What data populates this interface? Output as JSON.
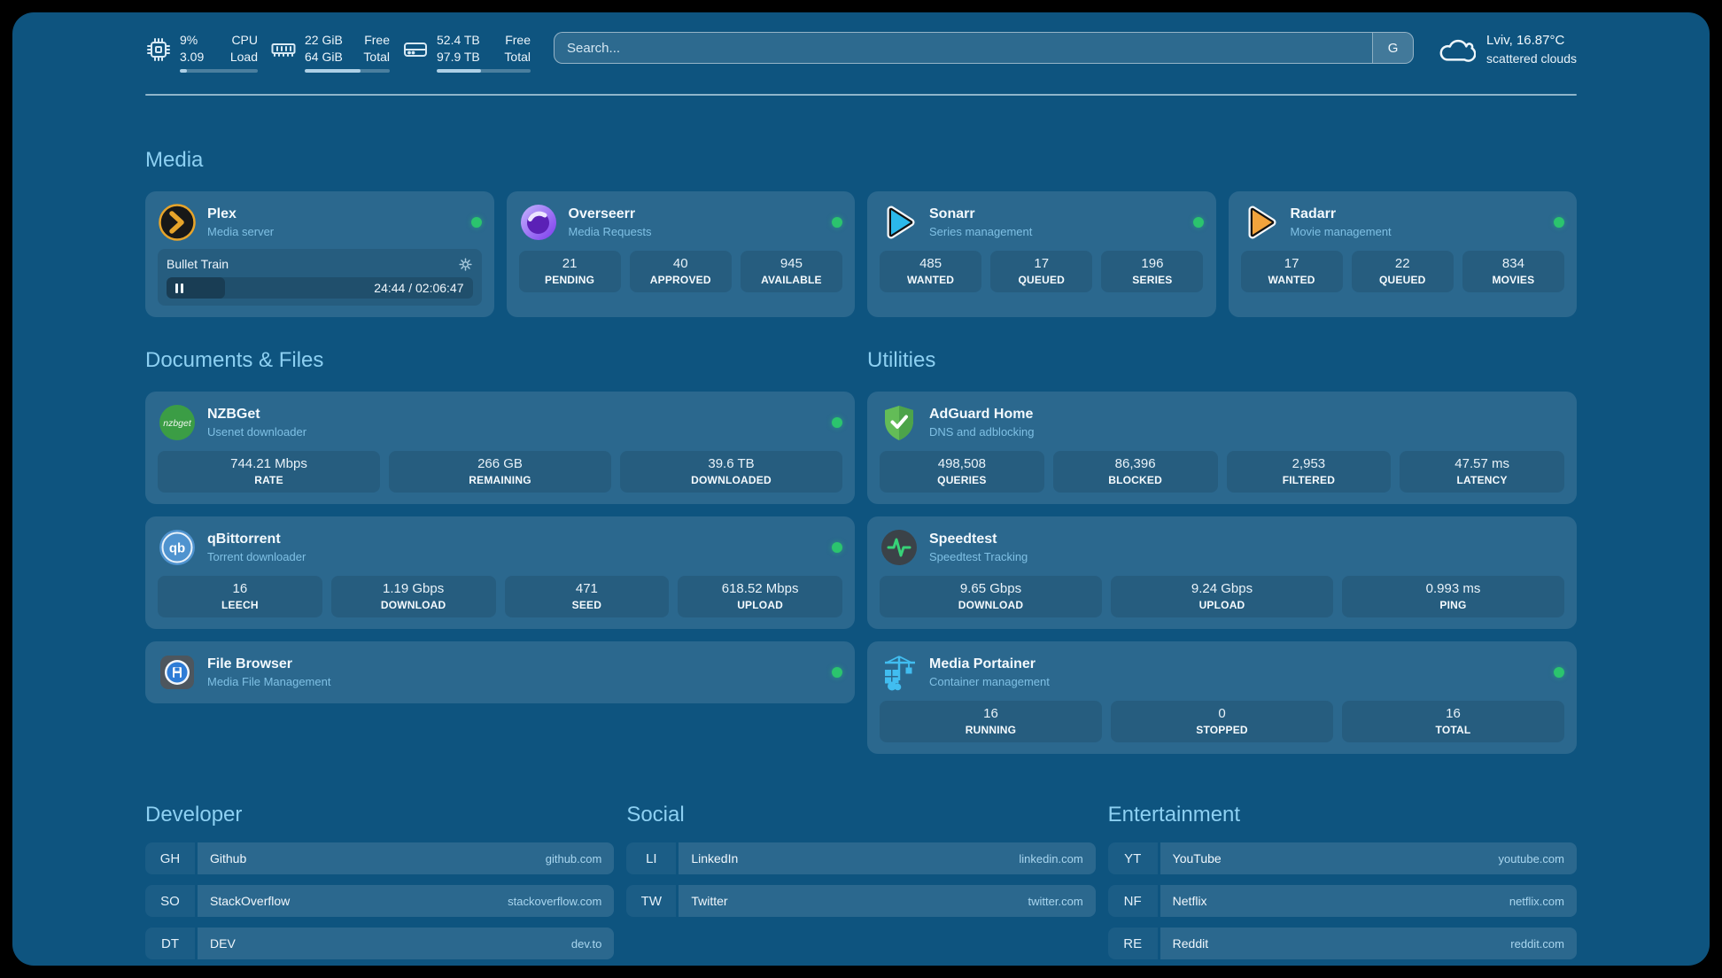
{
  "colors": {
    "panel_background": "#0e547f",
    "accent_heading": "#8dd0f2",
    "status_online": "#2bc46e"
  },
  "topbar": {
    "stats": [
      {
        "icon": "cpu-icon",
        "value1": "9%",
        "label1": "CPU",
        "value2": "3.09",
        "label2": "Load",
        "progress": 9
      },
      {
        "icon": "memory-icon",
        "value1": "22 GiB",
        "label1": "Free",
        "value2": "64 GiB",
        "label2": "Total",
        "progress": 66
      },
      {
        "icon": "disk-icon",
        "value1": "52.4 TB",
        "label1": "Free",
        "value2": "97.9 TB",
        "label2": "Total",
        "progress": 47
      }
    ],
    "search": {
      "placeholder": "Search...",
      "button_label": "G"
    },
    "weather": {
      "location_temp": "Lviv, 16.87°C",
      "condition": "scattered clouds"
    }
  },
  "media": {
    "header": "Media",
    "plex": {
      "title": "Plex",
      "subtitle": "Media server",
      "now_playing": "Bullet Train",
      "time": "24:44 / 02:06:47",
      "progress_pct": 19
    },
    "overseerr": {
      "title": "Overseerr",
      "subtitle": "Media Requests",
      "stats": [
        {
          "value": "21",
          "label": "PENDING"
        },
        {
          "value": "40",
          "label": "APPROVED"
        },
        {
          "value": "945",
          "label": "AVAILABLE"
        }
      ]
    },
    "sonarr": {
      "title": "Sonarr",
      "subtitle": "Series management",
      "stats": [
        {
          "value": "485",
          "label": "WANTED"
        },
        {
          "value": "17",
          "label": "QUEUED"
        },
        {
          "value": "196",
          "label": "SERIES"
        }
      ]
    },
    "radarr": {
      "title": "Radarr",
      "subtitle": "Movie management",
      "stats": [
        {
          "value": "17",
          "label": "WANTED"
        },
        {
          "value": "22",
          "label": "QUEUED"
        },
        {
          "value": "834",
          "label": "MOVIES"
        }
      ]
    }
  },
  "documents": {
    "header": "Documents & Files",
    "nzbget": {
      "title": "NZBGet",
      "subtitle": "Usenet downloader",
      "stats": [
        {
          "value": "744.21 Mbps",
          "label": "RATE"
        },
        {
          "value": "266 GB",
          "label": "REMAINING"
        },
        {
          "value": "39.6 TB",
          "label": "DOWNLOADED"
        }
      ]
    },
    "qbittorrent": {
      "title": "qBittorrent",
      "subtitle": "Torrent downloader",
      "stats": [
        {
          "value": "16",
          "label": "LEECH"
        },
        {
          "value": "1.19 Gbps",
          "label": "DOWNLOAD"
        },
        {
          "value": "471",
          "label": "SEED"
        },
        {
          "value": "618.52 Mbps",
          "label": "UPLOAD"
        }
      ]
    },
    "filebrowser": {
      "title": "File Browser",
      "subtitle": "Media File Management"
    }
  },
  "utilities": {
    "header": "Utilities",
    "adguard": {
      "title": "AdGuard Home",
      "subtitle": "DNS and adblocking",
      "stats": [
        {
          "value": "498,508",
          "label": "QUERIES"
        },
        {
          "value": "86,396",
          "label": "BLOCKED"
        },
        {
          "value": "2,953",
          "label": "FILTERED"
        },
        {
          "value": "47.57 ms",
          "label": "LATENCY"
        }
      ]
    },
    "speedtest": {
      "title": "Speedtest",
      "subtitle": "Speedtest Tracking",
      "stats": [
        {
          "value": "9.65 Gbps",
          "label": "DOWNLOAD"
        },
        {
          "value": "9.24 Gbps",
          "label": "UPLOAD"
        },
        {
          "value": "0.993 ms",
          "label": "PING"
        }
      ]
    },
    "portainer": {
      "title": "Media Portainer",
      "subtitle": "Container management",
      "stats": [
        {
          "value": "16",
          "label": "RUNNING"
        },
        {
          "value": "0",
          "label": "STOPPED"
        },
        {
          "value": "16",
          "label": "TOTAL"
        }
      ]
    }
  },
  "links": {
    "developer": {
      "header": "Developer",
      "items": [
        {
          "abbr": "GH",
          "name": "Github",
          "url": "github.com"
        },
        {
          "abbr": "SO",
          "name": "StackOverflow",
          "url": "stackoverflow.com"
        },
        {
          "abbr": "DT",
          "name": "DEV",
          "url": "dev.to"
        }
      ]
    },
    "social": {
      "header": "Social",
      "items": [
        {
          "abbr": "LI",
          "name": "LinkedIn",
          "url": "linkedin.com"
        },
        {
          "abbr": "TW",
          "name": "Twitter",
          "url": "twitter.com"
        }
      ]
    },
    "entertainment": {
      "header": "Entertainment",
      "items": [
        {
          "abbr": "YT",
          "name": "YouTube",
          "url": "youtube.com"
        },
        {
          "abbr": "NF",
          "name": "Netflix",
          "url": "netflix.com"
        },
        {
          "abbr": "RE",
          "name": "Reddit",
          "url": "reddit.com"
        }
      ]
    }
  }
}
